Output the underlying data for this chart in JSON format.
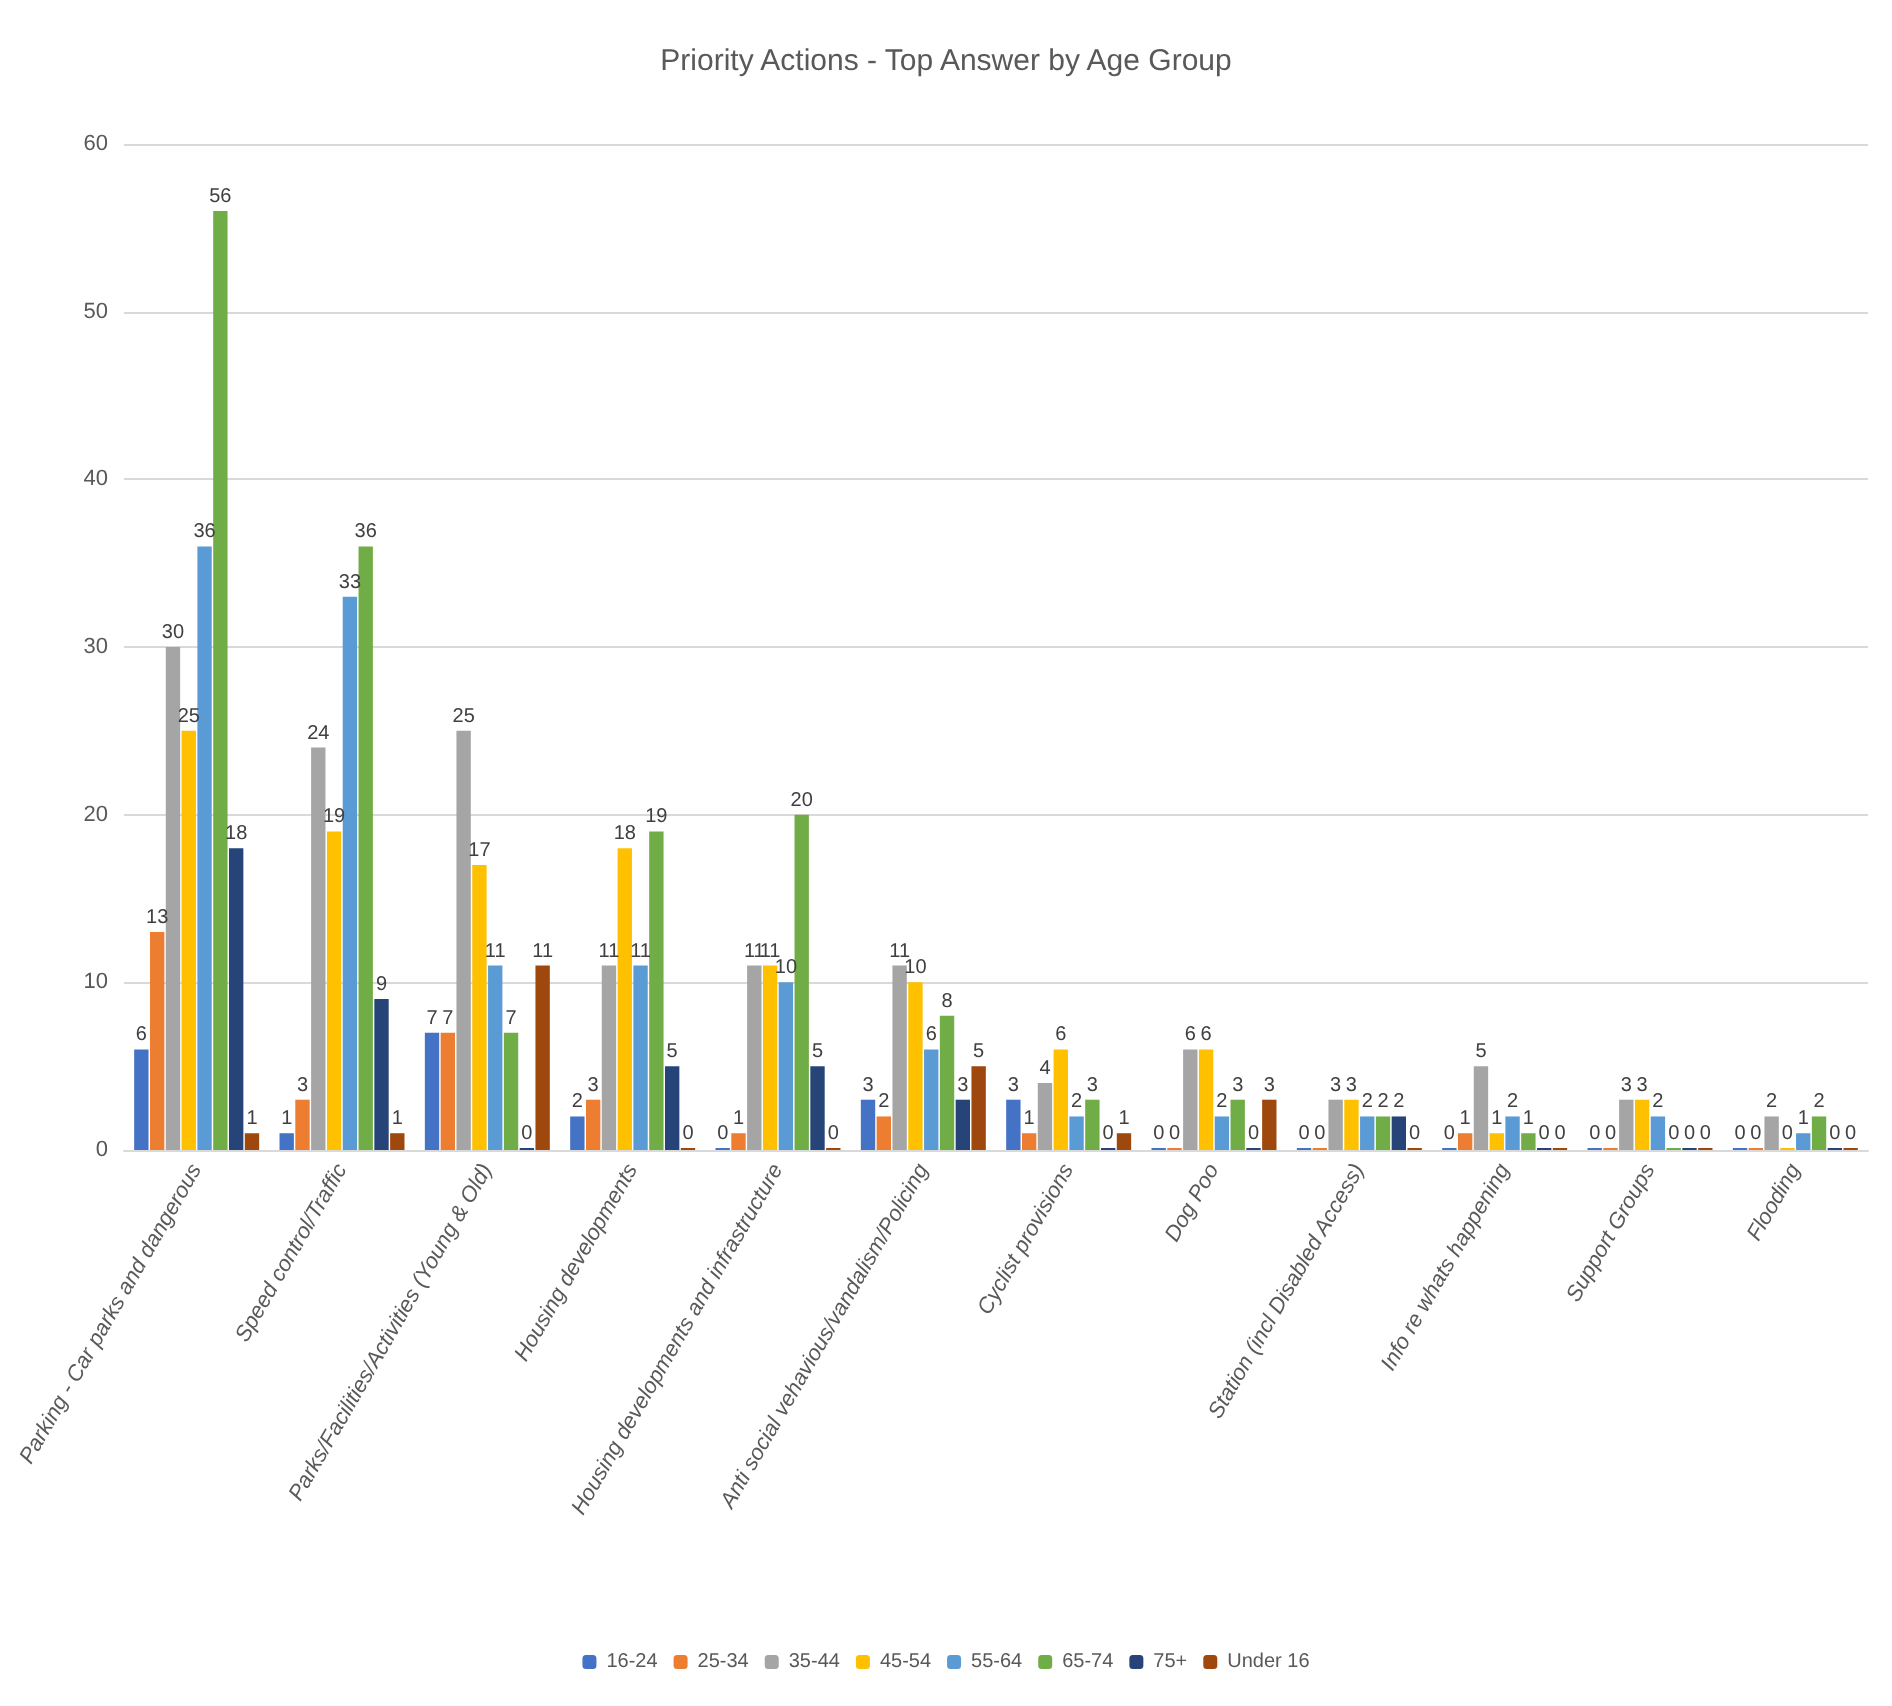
{
  "chart_data": {
    "type": "bar",
    "title": "Priority Actions - Top Answer by Age Group",
    "categories": [
      "Parking - Car parks and dangerous",
      "Speed control/Traffic",
      "Parks/Facilities/Activities (Young & Old)",
      "Housing developments",
      "Housing developments and infrastructure",
      "Anti social vehavious/vandalism/Policing",
      "Cyclist provisions",
      "Dog Poo",
      "Station (incl Disabled Access)",
      "Info re whats happening",
      "Support Groups",
      "Flooding"
    ],
    "series": [
      {
        "name": "16-24",
        "color": "#4472c4",
        "values": [
          6,
          1,
          7,
          2,
          0,
          3,
          3,
          0,
          0,
          0,
          0,
          0
        ]
      },
      {
        "name": "25-34",
        "color": "#ed7d31",
        "values": [
          13,
          3,
          7,
          3,
          1,
          2,
          1,
          0,
          0,
          1,
          0,
          0
        ]
      },
      {
        "name": "35-44",
        "color": "#a5a5a5",
        "values": [
          30,
          24,
          25,
          11,
          11,
          11,
          4,
          6,
          3,
          5,
          3,
          2
        ]
      },
      {
        "name": "45-54",
        "color": "#ffc000",
        "values": [
          25,
          19,
          17,
          18,
          11,
          10,
          6,
          6,
          3,
          1,
          3,
          0
        ]
      },
      {
        "name": "55-64",
        "color": "#5b9bd5",
        "values": [
          36,
          33,
          11,
          11,
          10,
          6,
          2,
          2,
          2,
          2,
          2,
          1
        ]
      },
      {
        "name": "65-74",
        "color": "#70ad47",
        "values": [
          56,
          36,
          7,
          19,
          20,
          8,
          3,
          3,
          2,
          1,
          0,
          2
        ]
      },
      {
        "name": "75+",
        "color": "#264478",
        "values": [
          18,
          9,
          0,
          5,
          5,
          3,
          0,
          0,
          2,
          0,
          0,
          0
        ]
      },
      {
        "name": "Under 16",
        "color": "#9e480e",
        "values": [
          1,
          1,
          11,
          0,
          0,
          5,
          1,
          3,
          0,
          0,
          0,
          0
        ]
      }
    ],
    "ylim": [
      0,
      60
    ],
    "yticks": [
      0,
      10,
      20,
      30,
      40,
      50,
      60
    ],
    "grid": "y",
    "legend": "bottom",
    "data_labels": true
  }
}
